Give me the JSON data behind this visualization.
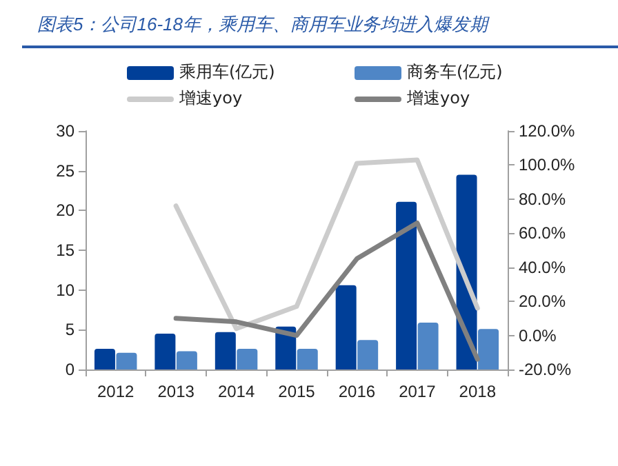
{
  "chart_data": {
    "type": "bar",
    "title": "图表5：公司16-18年，乘用车、商用车业务均进入爆发期",
    "categories": [
      "2012",
      "2013",
      "2014",
      "2015",
      "2016",
      "2017",
      "2018"
    ],
    "series": [
      {
        "name": "乘用车(亿元)",
        "color": "#003f98",
        "values": [
          2.6,
          4.5,
          4.7,
          5.4,
          10.6,
          21.1,
          24.5
        ]
      },
      {
        "name": "商务车(亿元)",
        "color": "#4f86c6",
        "values": [
          2.1,
          2.3,
          2.6,
          2.6,
          3.7,
          5.9,
          5.1
        ]
      },
      {
        "name": "增速yoy",
        "type": "line",
        "axis": "y2",
        "color": "#cccccc",
        "values": [
          null,
          76,
          4,
          17,
          101,
          103,
          16
        ]
      },
      {
        "name": "增速yoy",
        "type": "line",
        "axis": "y2",
        "color": "#808080",
        "values": [
          null,
          10,
          8,
          0,
          45,
          66,
          -14
        ]
      }
    ],
    "ylim": [
      0,
      30
    ],
    "yticks": [
      0,
      5,
      10,
      15,
      20,
      25,
      30
    ],
    "y2lim": [
      -20,
      120
    ],
    "y2ticks": [
      {
        "value": -20,
        "label": "-20.0%"
      },
      {
        "value": 0,
        "label": "0.0%"
      },
      {
        "value": 20,
        "label": "20.0%"
      },
      {
        "value": 40,
        "label": "40.0%"
      },
      {
        "value": 60,
        "label": "60.0%"
      },
      {
        "value": 80,
        "label": "80.0%"
      },
      {
        "value": 100,
        "label": "100.0%"
      },
      {
        "value": 120,
        "label": "120.0%"
      }
    ],
    "grid": false,
    "legend": "top",
    "marker": "none"
  }
}
